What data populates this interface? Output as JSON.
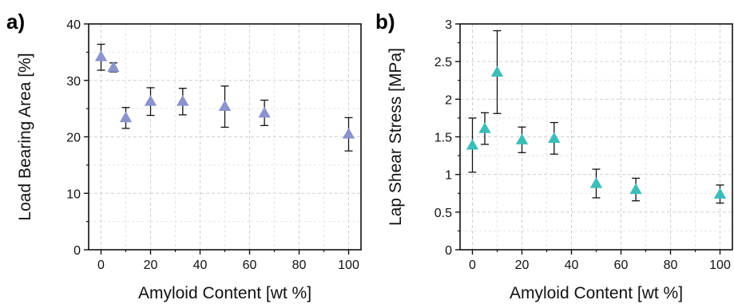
{
  "chart_data": [
    {
      "type": "scatter",
      "panel_label": "a)",
      "xlabel": "Amyloid Content [wt %]",
      "ylabel": "Load Bearing Area [%]",
      "xlim": [
        -5,
        105
      ],
      "ylim": [
        0,
        40
      ],
      "xticks": [
        0,
        20,
        40,
        60,
        80,
        100
      ],
      "yticks": [
        0,
        10,
        20,
        30,
        40
      ],
      "grid": true,
      "marker": "triangle",
      "color": "#8a93cc",
      "series": [
        {
          "x": [
            0,
            5,
            10,
            20,
            33,
            50,
            66,
            100
          ],
          "y": [
            34.2,
            32.3,
            23.4,
            26.3,
            26.3,
            25.4,
            24.2,
            20.5
          ],
          "err_lo": [
            2.4,
            0.8,
            1.9,
            2.5,
            2.4,
            3.7,
            2.2,
            3.0
          ],
          "err_hi": [
            2.2,
            0.8,
            1.8,
            2.4,
            2.3,
            3.6,
            2.3,
            2.9
          ]
        }
      ]
    },
    {
      "type": "scatter",
      "panel_label": "b)",
      "xlabel": "Amyloid Content [wt %]",
      "ylabel": "Lap Shear Stress [MPa]",
      "xlim": [
        -5,
        105
      ],
      "ylim": [
        0,
        3
      ],
      "xticks": [
        0,
        20,
        40,
        60,
        80,
        100
      ],
      "yticks": [
        0,
        0.5,
        1,
        1.5,
        2,
        2.5,
        3
      ],
      "ytick_labels": [
        "0",
        "0.5",
        "1",
        "1.5",
        "2",
        "2.5",
        "3"
      ],
      "grid": true,
      "marker": "triangle",
      "color": "#3dbdba",
      "series": [
        {
          "x": [
            0,
            5,
            10,
            20,
            33,
            50,
            66,
            100
          ],
          "y": [
            1.39,
            1.61,
            2.36,
            1.46,
            1.48,
            0.88,
            0.8,
            0.74
          ],
          "err_lo": [
            0.36,
            0.21,
            0.55,
            0.17,
            0.21,
            0.19,
            0.15,
            0.12
          ],
          "err_hi": [
            0.36,
            0.21,
            0.55,
            0.17,
            0.21,
            0.19,
            0.15,
            0.12
          ]
        }
      ]
    }
  ]
}
